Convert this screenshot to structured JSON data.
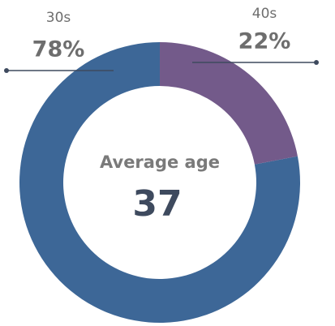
{
  "chart_data": {
    "type": "donut",
    "categories": [
      "30s",
      "40s"
    ],
    "values": [
      78,
      22
    ],
    "value_labels": [
      "78%",
      "22%"
    ],
    "colors": [
      "#3d6797",
      "#735a8a"
    ],
    "center_label": "Average age",
    "center_value": "37"
  }
}
